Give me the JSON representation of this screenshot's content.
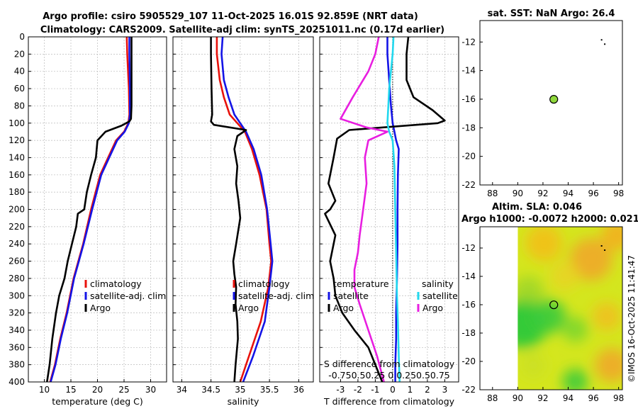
{
  "title_line1": "Argo profile: csiro 5905529_107 11-Oct-2025 16.01S 92.859E (NRT data)",
  "title_line2": "Climatology: CARS2009. Satellite-adj clim: synTS_20251011.nc (0.17d earlier)",
  "side_stamp": "©IMOS 16-Oct-2025 11:41:47",
  "chart_data": [
    {
      "type": "line",
      "id": "temperature",
      "xlabel": "temperature (deg C)",
      "ylabel": "",
      "xlim": [
        7,
        33
      ],
      "xticks": [
        10,
        15,
        20,
        25,
        30
      ],
      "xtick_labels": [
        "10",
        "15",
        "20",
        "25",
        "30"
      ],
      "ylim": [
        0,
        400
      ],
      "yticks": [
        0,
        20,
        40,
        60,
        80,
        100,
        120,
        140,
        160,
        180,
        200,
        220,
        240,
        260,
        280,
        300,
        320,
        340,
        360,
        380,
        400
      ],
      "ytick_labels": [
        "0",
        "20",
        "40",
        "60",
        "80",
        "100",
        "120",
        "140",
        "160",
        "180",
        "200",
        "220",
        "240",
        "260",
        "280",
        "300",
        "320",
        "340",
        "360",
        "380",
        "400"
      ],
      "grid": true,
      "legend": [
        {
          "label": "climatology",
          "color": "#e8120c"
        },
        {
          "label": "satellite-adj. clim",
          "color": "#1414e6"
        },
        {
          "label": "Argo",
          "color": "#000000"
        }
      ],
      "series": [
        {
          "name": "climatology",
          "color": "#e8120c",
          "x": [
            25.5,
            25.6,
            25.9,
            26.0,
            25.8,
            25.0,
            23.5,
            22.0,
            20.5,
            18.8,
            17.3,
            15.5,
            14.2,
            13.0,
            12.0,
            11.1
          ],
          "depth": [
            0,
            20,
            60,
            90,
            100,
            110,
            120,
            140,
            160,
            200,
            240,
            280,
            320,
            350,
            380,
            400
          ]
        },
        {
          "name": "satellite-adj. clim",
          "color": "#1414e6",
          "x": [
            26.0,
            26.0,
            26.1,
            26.1,
            25.9,
            25.1,
            23.7,
            22.2,
            20.7,
            19.0,
            17.4,
            15.6,
            14.3,
            13.1,
            12.1,
            11.2
          ],
          "depth": [
            0,
            20,
            60,
            90,
            100,
            110,
            120,
            140,
            160,
            200,
            240,
            280,
            320,
            350,
            380,
            400
          ]
        },
        {
          "name": "Argo",
          "color": "#000000",
          "x": [
            26.4,
            26.4,
            26.4,
            26.3,
            26.0,
            24.5,
            21.5,
            20.0,
            19.7,
            18.8,
            18.0,
            17.5,
            16.3,
            16.0,
            15.2,
            14.4,
            13.8,
            12.8,
            12.2,
            11.5,
            11.0,
            10.5
          ],
          "depth": [
            0,
            50,
            80,
            95,
            98,
            103,
            110,
            120,
            140,
            160,
            180,
            200,
            205,
            220,
            240,
            260,
            280,
            300,
            320,
            350,
            380,
            400
          ]
        }
      ]
    },
    {
      "type": "line",
      "id": "salinity",
      "xlabel": "salinity",
      "ylabel": "",
      "xlim": [
        33.85,
        36.25
      ],
      "xticks": [
        34,
        34.5,
        35,
        35.5,
        36
      ],
      "xtick_labels": [
        "34",
        "34.5",
        "35",
        "35.5",
        "36"
      ],
      "ylim": [
        0,
        400
      ],
      "grid": true,
      "legend": [
        {
          "label": "climatology",
          "color": "#e8120c"
        },
        {
          "label": "satellite-adj. clim",
          "color": "#1414e6"
        },
        {
          "label": "Argo",
          "color": "#000000"
        }
      ],
      "series": [
        {
          "name": "climatology",
          "color": "#e8120c",
          "x": [
            34.6,
            34.6,
            34.65,
            34.72,
            34.82,
            34.95,
            35.08,
            35.2,
            35.33,
            35.45,
            35.5,
            35.53,
            35.48,
            35.35,
            35.15,
            35.0
          ],
          "depth": [
            0,
            20,
            50,
            70,
            90,
            100,
            110,
            130,
            160,
            200,
            240,
            260,
            290,
            330,
            370,
            400
          ]
        },
        {
          "name": "satellite-adj. clim",
          "color": "#1414e6",
          "x": [
            34.7,
            34.68,
            34.72,
            34.8,
            34.9,
            35.0,
            35.1,
            35.23,
            35.36,
            35.46,
            35.52,
            35.55,
            35.5,
            35.42,
            35.22,
            35.05
          ],
          "depth": [
            0,
            20,
            50,
            70,
            90,
            100,
            110,
            130,
            160,
            200,
            240,
            260,
            290,
            330,
            370,
            400
          ]
        },
        {
          "name": "Argo",
          "color": "#000000",
          "x": [
            34.5,
            34.5,
            34.51,
            34.52,
            34.5,
            34.55,
            35.1,
            34.95,
            34.9,
            34.95,
            34.93,
            34.97,
            35.0,
            34.93,
            34.88,
            34.9,
            34.93,
            34.92,
            34.95,
            34.96,
            34.92,
            34.9
          ],
          "depth": [
            0,
            20,
            60,
            90,
            98,
            102,
            108,
            115,
            130,
            150,
            170,
            190,
            210,
            240,
            260,
            275,
            290,
            310,
            330,
            350,
            380,
            400
          ]
        }
      ]
    },
    {
      "type": "line",
      "id": "difference",
      "xlabel": "T difference from climatology",
      "xlabel_top": "S difference from climatology",
      "top_tick_labels": "-0.750.50.25 0 0.250.50.75",
      "ylabel": "",
      "xlim": [
        -4.2,
        3.8
      ],
      "xticks": [
        -3,
        -2,
        -1,
        0,
        1,
        2,
        3
      ],
      "xtick_labels": [
        "-3",
        "-2",
        "-1",
        "0",
        "1",
        "2",
        "3"
      ],
      "ylim": [
        0,
        400
      ],
      "grid": true,
      "legend_title_left": "temperature",
      "legend_title_right": "salinity",
      "legend": [
        {
          "label": "satellite",
          "color": "#1414e6"
        },
        {
          "label": "Argo",
          "color": "#000000"
        },
        {
          "label": "satellite",
          "color": "#22d8ee"
        },
        {
          "label": "Argo",
          "color": "#e81ee0"
        }
      ],
      "series": [
        {
          "name": "T satellite",
          "color": "#1414e6",
          "x": [
            -0.3,
            -0.3,
            -0.2,
            -0.1,
            0.0,
            0.1,
            0.2,
            0.35,
            0.3,
            0.28,
            0.28,
            0.25,
            0.2,
            0.2,
            0.15,
            0.15
          ],
          "depth": [
            0,
            20,
            50,
            80,
            100,
            110,
            120,
            130,
            160,
            200,
            240,
            280,
            320,
            350,
            380,
            400
          ]
        },
        {
          "name": "T Argo",
          "color": "#000000",
          "x": [
            0.9,
            0.8,
            0.8,
            1.2,
            2.3,
            3.0,
            2.6,
            -2.5,
            -3.2,
            -3.4,
            -3.7,
            -3.3,
            -3.6,
            -3.9,
            -3.3,
            -3.6,
            -3.4,
            -3.3,
            -2.9,
            -2.2,
            -1.4,
            -1.0,
            -0.6
          ],
          "depth": [
            0,
            20,
            50,
            70,
            85,
            97,
            100,
            108,
            118,
            140,
            170,
            190,
            200,
            205,
            230,
            260,
            280,
            300,
            320,
            340,
            360,
            380,
            400
          ]
        },
        {
          "name": "S satellite",
          "color": "#22d8ee",
          "x": [
            0.05,
            0.0,
            -0.2,
            -0.25,
            -0.3,
            -0.2,
            0.0,
            0.1,
            0.15,
            0.2,
            0.25,
            0.3,
            0.35,
            0.4
          ],
          "depth": [
            0,
            20,
            60,
            80,
            100,
            110,
            120,
            150,
            200,
            250,
            300,
            330,
            370,
            400
          ]
        },
        {
          "name": "S Argo",
          "color": "#e81ee0",
          "x": [
            -0.8,
            -1.0,
            -1.4,
            -2.3,
            -3.0,
            -1.5,
            -0.3,
            -1.4,
            -1.6,
            -1.5,
            -1.7,
            -1.9,
            -2.0,
            -2.2,
            -2.2,
            -1.9,
            -1.4,
            -0.9,
            -0.5
          ],
          "depth": [
            0,
            20,
            40,
            70,
            95,
            105,
            110,
            120,
            140,
            170,
            200,
            230,
            250,
            270,
            290,
            310,
            340,
            370,
            400
          ]
        }
      ]
    },
    {
      "type": "scatter",
      "id": "sst-map",
      "title": "sat. SST: NaN Argo: 26.4",
      "xlim": [
        87,
        98.3
      ],
      "ylim": [
        -22,
        -10.5
      ],
      "xticks": [
        88,
        90,
        92,
        94,
        96,
        98
      ],
      "xtick_labels": [
        "88",
        "90",
        "92",
        "94",
        "96",
        "98"
      ],
      "yticks": [
        -12,
        -14,
        -16,
        -18,
        -20,
        -22
      ],
      "ytick_labels": [
        "-12",
        "-14",
        "-16",
        "-18",
        "-20",
        "-22"
      ],
      "points": [
        {
          "lon": 92.859,
          "lat": -16.01,
          "color": "#8fd83c"
        }
      ],
      "island_points": [
        {
          "lon": 96.65,
          "lat": -11.85
        },
        {
          "lon": 96.9,
          "lat": -12.15
        }
      ]
    },
    {
      "type": "heatmap",
      "id": "sla-map",
      "title_line1": "Altim. SLA: 0.046",
      "title_line2": "Argo h1000: -0.0072 h2000: 0.021",
      "xlim": [
        87,
        98.3
      ],
      "ylim": [
        -22,
        -10.5
      ],
      "data_lon_range": [
        90,
        98.3
      ],
      "xticks": [
        88,
        90,
        92,
        94,
        96,
        98
      ],
      "xtick_labels": [
        "88",
        "90",
        "92",
        "94",
        "96",
        "98"
      ],
      "yticks": [
        -12,
        -14,
        -16,
        -18,
        -20,
        -22
      ],
      "ytick_labels": [
        "-12",
        "-14",
        "-16",
        "-18",
        "-20",
        "-22"
      ],
      "points": [
        {
          "lon": 92.859,
          "lat": -16.01
        }
      ],
      "island_points": [
        {
          "lon": 96.65,
          "lat": -11.85
        },
        {
          "lon": 96.9,
          "lat": -12.15
        }
      ]
    }
  ]
}
